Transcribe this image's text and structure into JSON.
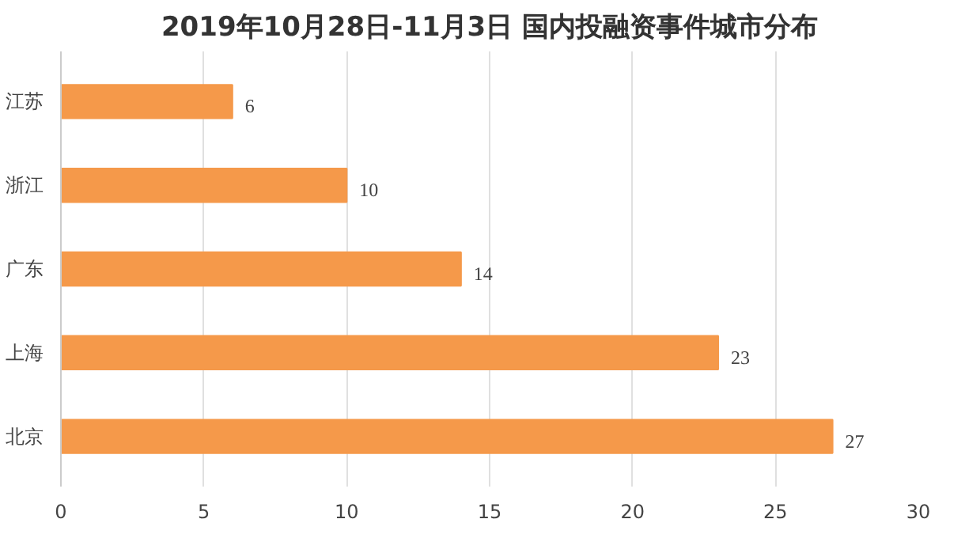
{
  "chart_data": {
    "type": "bar",
    "orientation": "horizontal",
    "title": "2019年10月28日-11月3日 国内投融资事件城市分布",
    "categories": [
      "江苏",
      "浙江",
      "广东",
      "上海",
      "北京"
    ],
    "values": [
      6,
      10,
      14,
      23,
      27
    ],
    "color": "#f5994a",
    "xlim": [
      0,
      30
    ],
    "xticks": [
      0,
      5,
      10,
      15,
      20,
      25,
      30
    ],
    "grid": "x",
    "data_labels": true
  }
}
